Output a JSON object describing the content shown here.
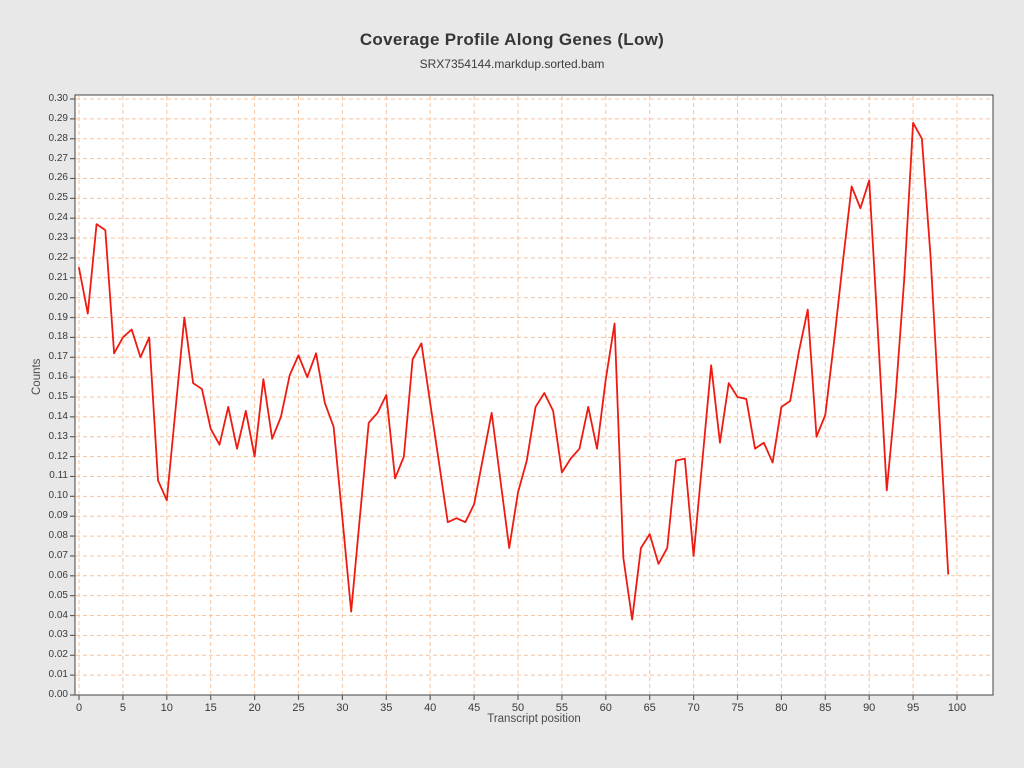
{
  "window": {
    "background": "#e8e8e8",
    "plot_background": "#ffffff",
    "frame_color": "#606060",
    "tick_text_color": "#3a3a3a"
  },
  "chart_data": {
    "type": "line",
    "title": "Coverage Profile Along Genes (Low)",
    "subtitle": "SRX7354144.markdup.sorted.bam",
    "xlabel": "Transcript position",
    "ylabel": "Counts",
    "xlim": [
      0,
      104
    ],
    "ylim": [
      0.0,
      0.3
    ],
    "x_tick_step": 5,
    "x_ticks": [
      0,
      5,
      10,
      15,
      20,
      25,
      30,
      35,
      40,
      45,
      50,
      55,
      60,
      65,
      70,
      75,
      80,
      85,
      90,
      95,
      100
    ],
    "y_tick_step": 0.01,
    "grid": true,
    "grid_style": "dashed",
    "grid_color": "#f5c4a0",
    "line_color": "#ee1b12",
    "legend": "none",
    "x_start": 0,
    "x_step": 1,
    "values": [
      0.215,
      0.192,
      0.237,
      0.234,
      0.172,
      0.18,
      0.184,
      0.17,
      0.18,
      0.108,
      0.098,
      0.144,
      0.19,
      0.157,
      0.154,
      0.134,
      0.126,
      0.145,
      0.124,
      0.143,
      0.12,
      0.159,
      0.129,
      0.14,
      0.161,
      0.171,
      0.16,
      0.172,
      0.147,
      0.135,
      0.089,
      0.042,
      0.09,
      0.137,
      0.142,
      0.151,
      0.109,
      0.12,
      0.169,
      0.177,
      0.147,
      0.117,
      0.087,
      0.089,
      0.087,
      0.096,
      0.119,
      0.142,
      0.108,
      0.074,
      0.102,
      0.118,
      0.145,
      0.152,
      0.143,
      0.112,
      0.119,
      0.124,
      0.145,
      0.124,
      0.159,
      0.187,
      0.069,
      0.038,
      0.074,
      0.081,
      0.066,
      0.074,
      0.118,
      0.119,
      0.07,
      0.118,
      0.166,
      0.127,
      0.157,
      0.15,
      0.149,
      0.124,
      0.127,
      0.117,
      0.145,
      0.148,
      0.173,
      0.194,
      0.13,
      0.141,
      0.178,
      0.218,
      0.256,
      0.245,
      0.259,
      0.182,
      0.103,
      0.15,
      0.21,
      0.288,
      0.28,
      0.22,
      0.14,
      0.061
    ]
  }
}
